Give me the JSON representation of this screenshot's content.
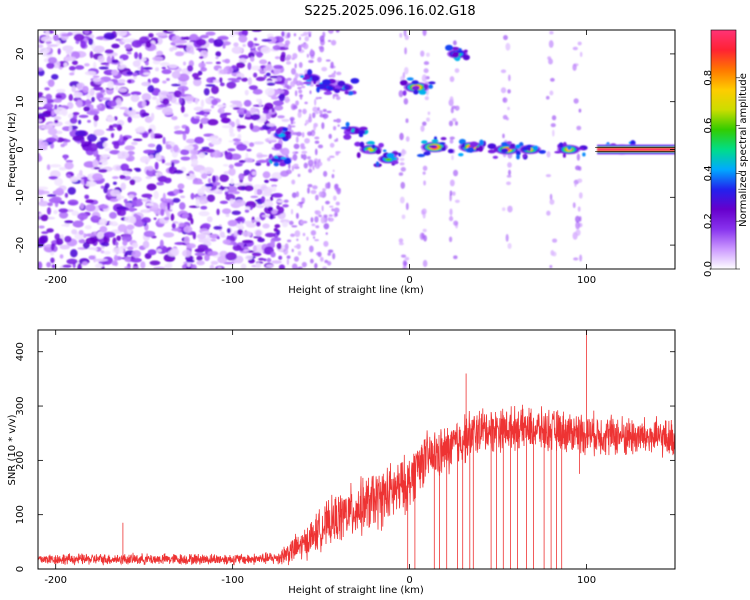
{
  "figure": {
    "title": "S225.2025.096.16.02.G18"
  },
  "colors": {
    "snr_line": "#ee3333",
    "track_center": "#000000",
    "colormap": [
      "#ffffff",
      "#cc99ff",
      "#8833ee",
      "#6600cc",
      "#2222ee",
      "#00aaff",
      "#00dd88",
      "#33cc00",
      "#ccdd00",
      "#ffcc00",
      "#ff7700",
      "#ff2233",
      "#ff3377"
    ]
  },
  "chart_data": [
    {
      "type": "heatmap",
      "title": "",
      "xlabel": "Height of straight line (km)",
      "ylabel": "Frequency (Hz)",
      "xlim": [
        -210,
        150
      ],
      "ylim": [
        -25,
        25
      ],
      "x_ticks": [
        -200,
        -100,
        0,
        100
      ],
      "y_ticks": [
        -20,
        -10,
        0,
        10,
        20
      ],
      "colorbar": {
        "label": "Normalized spectral amplitude",
        "range": [
          0,
          1
        ],
        "ticks": [
          "0.0",
          "0.2",
          "0.4",
          "0.6",
          "0.8"
        ]
      },
      "features": [
        {
          "name": "noise",
          "x_range": [
            -210,
            -70
          ],
          "y_range": [
            -25,
            25
          ],
          "amplitude": 0.3
        },
        {
          "name": "blob",
          "x": -72,
          "y": 3,
          "amplitude": 0.45
        },
        {
          "name": "blob",
          "x": -74,
          "y": -2,
          "amplitude": 0.35
        },
        {
          "name": "blob",
          "x": -55,
          "y": 15,
          "amplitude": 0.35
        },
        {
          "name": "blob",
          "x": -46,
          "y": 13,
          "amplitude": 0.35
        },
        {
          "name": "blob",
          "x": -37,
          "y": 13,
          "amplitude": 0.45
        },
        {
          "name": "blob",
          "x": -32,
          "y": 4,
          "amplitude": 0.45
        },
        {
          "name": "blob",
          "x": -22,
          "y": 0,
          "amplitude": 0.7
        },
        {
          "name": "blob",
          "x": -12,
          "y": -2,
          "amplitude": 0.6
        },
        {
          "name": "blob",
          "x": 4,
          "y": 13,
          "amplitude": 0.9
        },
        {
          "name": "blob",
          "x": 27,
          "y": 20,
          "amplitude": 0.6
        },
        {
          "name": "blob",
          "x": 14,
          "y": 0.5,
          "amplitude": 0.95
        },
        {
          "name": "blob",
          "x": 35,
          "y": 0.5,
          "amplitude": 0.9
        },
        {
          "name": "blob",
          "x": 55,
          "y": 0,
          "amplitude": 0.85
        },
        {
          "name": "blob",
          "x": 68,
          "y": 0,
          "amplitude": 0.7
        },
        {
          "name": "blob",
          "x": 90,
          "y": 0,
          "amplitude": 0.75
        },
        {
          "name": "blob",
          "x": 120,
          "y": 0,
          "amplitude": 0.9
        },
        {
          "name": "track",
          "x_range": [
            106,
            150
          ],
          "y": 0,
          "amplitude": 1.0
        }
      ]
    },
    {
      "type": "line",
      "title": "",
      "xlabel": "Height of straight line (km)",
      "ylabel": "SNR (10 * v/v)",
      "xlim": [
        -210,
        150
      ],
      "ylim": [
        0,
        440
      ],
      "x_ticks": [
        -200,
        -100,
        0,
        100
      ],
      "y_ticks": [
        0,
        100,
        200,
        300,
        400
      ],
      "series": [
        {
          "x": [
            -210,
            -180,
            -150,
            -120,
            -90,
            -75,
            -70,
            -60,
            -50,
            -40,
            -30,
            -20,
            -10,
            0,
            5,
            10,
            20,
            30,
            40,
            60,
            80,
            100,
            120,
            150
          ],
          "mean": [
            18,
            18,
            18,
            18,
            18,
            20,
            28,
            45,
            75,
            95,
            110,
            125,
            140,
            160,
            195,
            205,
            215,
            240,
            255,
            260,
            255,
            250,
            245,
            240
          ],
          "spread": [
            12,
            12,
            12,
            12,
            12,
            14,
            25,
            35,
            45,
            55,
            60,
            65,
            65,
            60,
            60,
            55,
            55,
            55,
            50,
            45,
            45,
            45,
            45,
            40
          ],
          "spikes": [
            {
              "x": -162,
              "y": 85
            },
            {
              "x": 32,
              "y": 360
            },
            {
              "x": 100,
              "y": 440
            },
            {
              "x": 96,
              "y": 175
            }
          ],
          "dropouts": [
            -1,
            3,
            14,
            17,
            21,
            27,
            30,
            34,
            36,
            46,
            49,
            53,
            57,
            61,
            66,
            70,
            76,
            80,
            83,
            86
          ]
        }
      ]
    }
  ]
}
